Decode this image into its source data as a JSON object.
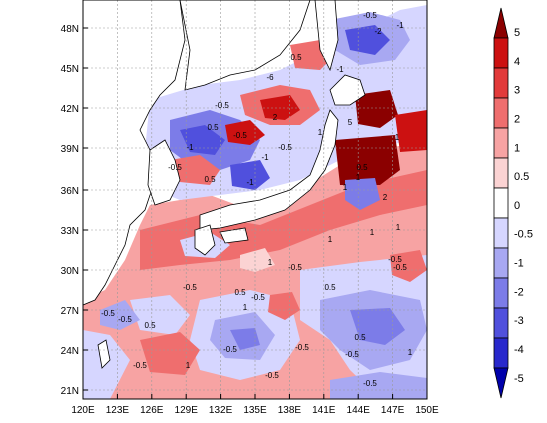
{
  "map": {
    "lon_ticks": [
      "120E",
      "123E",
      "126E",
      "129E",
      "132E",
      "135E",
      "138E",
      "141E",
      "144E",
      "147E",
      "150E"
    ],
    "lat_ticks": [
      "21N",
      "24N",
      "27N",
      "30N",
      "33N",
      "36N",
      "39N",
      "42N",
      "45N",
      "48N"
    ],
    "lon_range": [
      120,
      150
    ],
    "lat_range": [
      20,
      50
    ],
    "grid": "dashed"
  },
  "colorbar": {
    "levels": [
      "5",
      "4",
      "3",
      "2",
      "1",
      "0.5",
      "0",
      "-0.5",
      "-1",
      "-2",
      "-3",
      "-4",
      "-5"
    ],
    "colors": [
      "#8b0000",
      "#cc1111",
      "#e23a3a",
      "#ef6e6e",
      "#f7a3a3",
      "#fbd3d3",
      "#ffffff",
      "#d6d6ff",
      "#a8a8f2",
      "#7c7ce8",
      "#5050dd",
      "#2828cc",
      "#0000aa"
    ]
  },
  "contour_labels": [
    "-0.5",
    "-2",
    "-1",
    "-6",
    "0.5",
    "-1",
    "2",
    "-0.5",
    "5",
    "1",
    "1",
    "-0.5",
    "-0.5",
    "0.5",
    "-1",
    "-1",
    "0.5",
    "-1",
    "-0.5",
    "1",
    "1",
    "1",
    "1",
    "-0.5",
    "-0.5",
    "-0.5",
    "-0.5",
    "0.5",
    "0.5",
    "0.5",
    "-0.5",
    "-0.5",
    "-0.5",
    "0.5",
    "2",
    "1",
    "1",
    "0.5",
    "-0.5",
    "-0.5",
    "-0.5",
    "1",
    "1",
    "1",
    "-0.5",
    "-0.5",
    "-0.5"
  ]
}
